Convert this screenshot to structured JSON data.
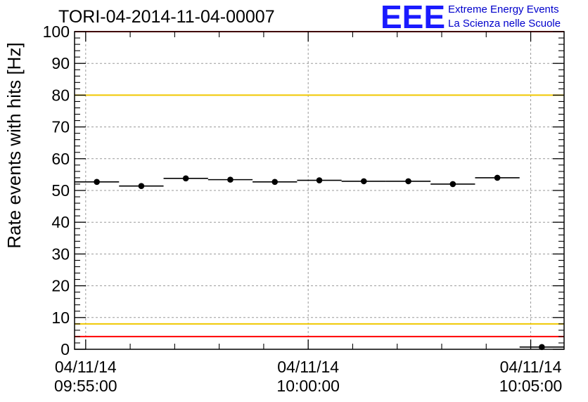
{
  "chart_data": {
    "type": "scatter",
    "title": "TORI-04-2014-11-04-00007",
    "ylabel": "Rate events with hits [Hz]",
    "xlabel": "",
    "ylim": [
      0,
      100
    ],
    "yticks": [
      0,
      10,
      20,
      30,
      40,
      50,
      60,
      70,
      80,
      90,
      100
    ],
    "xticks": [
      {
        "date": "04/11/14",
        "time": "09:55:00"
      },
      {
        "date": "04/11/14",
        "time": "10:00:00"
      },
      {
        "date": "04/11/14",
        "time": "10:05:00"
      }
    ],
    "xlim": [
      "09:54:45",
      "10:05:45"
    ],
    "grid": true,
    "series": [
      {
        "points": [
          {
            "xstart": "09:54:45",
            "xend": "09:55:45",
            "y": 52.7
          },
          {
            "xstart": "09:55:45",
            "xend": "09:56:45",
            "y": 51.4
          },
          {
            "xstart": "09:56:45",
            "xend": "09:57:45",
            "y": 53.8
          },
          {
            "xstart": "09:57:45",
            "xend": "09:58:45",
            "y": 53.4
          },
          {
            "xstart": "09:58:45",
            "xend": "09:59:45",
            "y": 52.7
          },
          {
            "xstart": "09:59:45",
            "xend": "10:00:45",
            "y": 53.2
          },
          {
            "xstart": "10:00:45",
            "xend": "10:01:45",
            "y": 52.9
          },
          {
            "xstart": "10:01:45",
            "xend": "10:02:45",
            "y": 52.9
          },
          {
            "xstart": "10:02:45",
            "xend": "10:03:45",
            "y": 52.0
          },
          {
            "xstart": "10:03:45",
            "xend": "10:04:45",
            "y": 54.0
          },
          {
            "xstart": "10:04:45",
            "xend": "10:05:45",
            "y": 0.7
          }
        ]
      }
    ],
    "reference_lines": [
      {
        "y": 80,
        "color": "#f0c800"
      },
      {
        "y": 8,
        "color": "#f0c800"
      },
      {
        "y": 100,
        "color": "#ff0000"
      },
      {
        "y": 4,
        "color": "#ff0000"
      }
    ]
  },
  "logo": {
    "mark": "EEE",
    "line1": "Extreme Energy Events",
    "line2": "La Scienza nelle Scuole",
    "color": "#1a1aff"
  }
}
